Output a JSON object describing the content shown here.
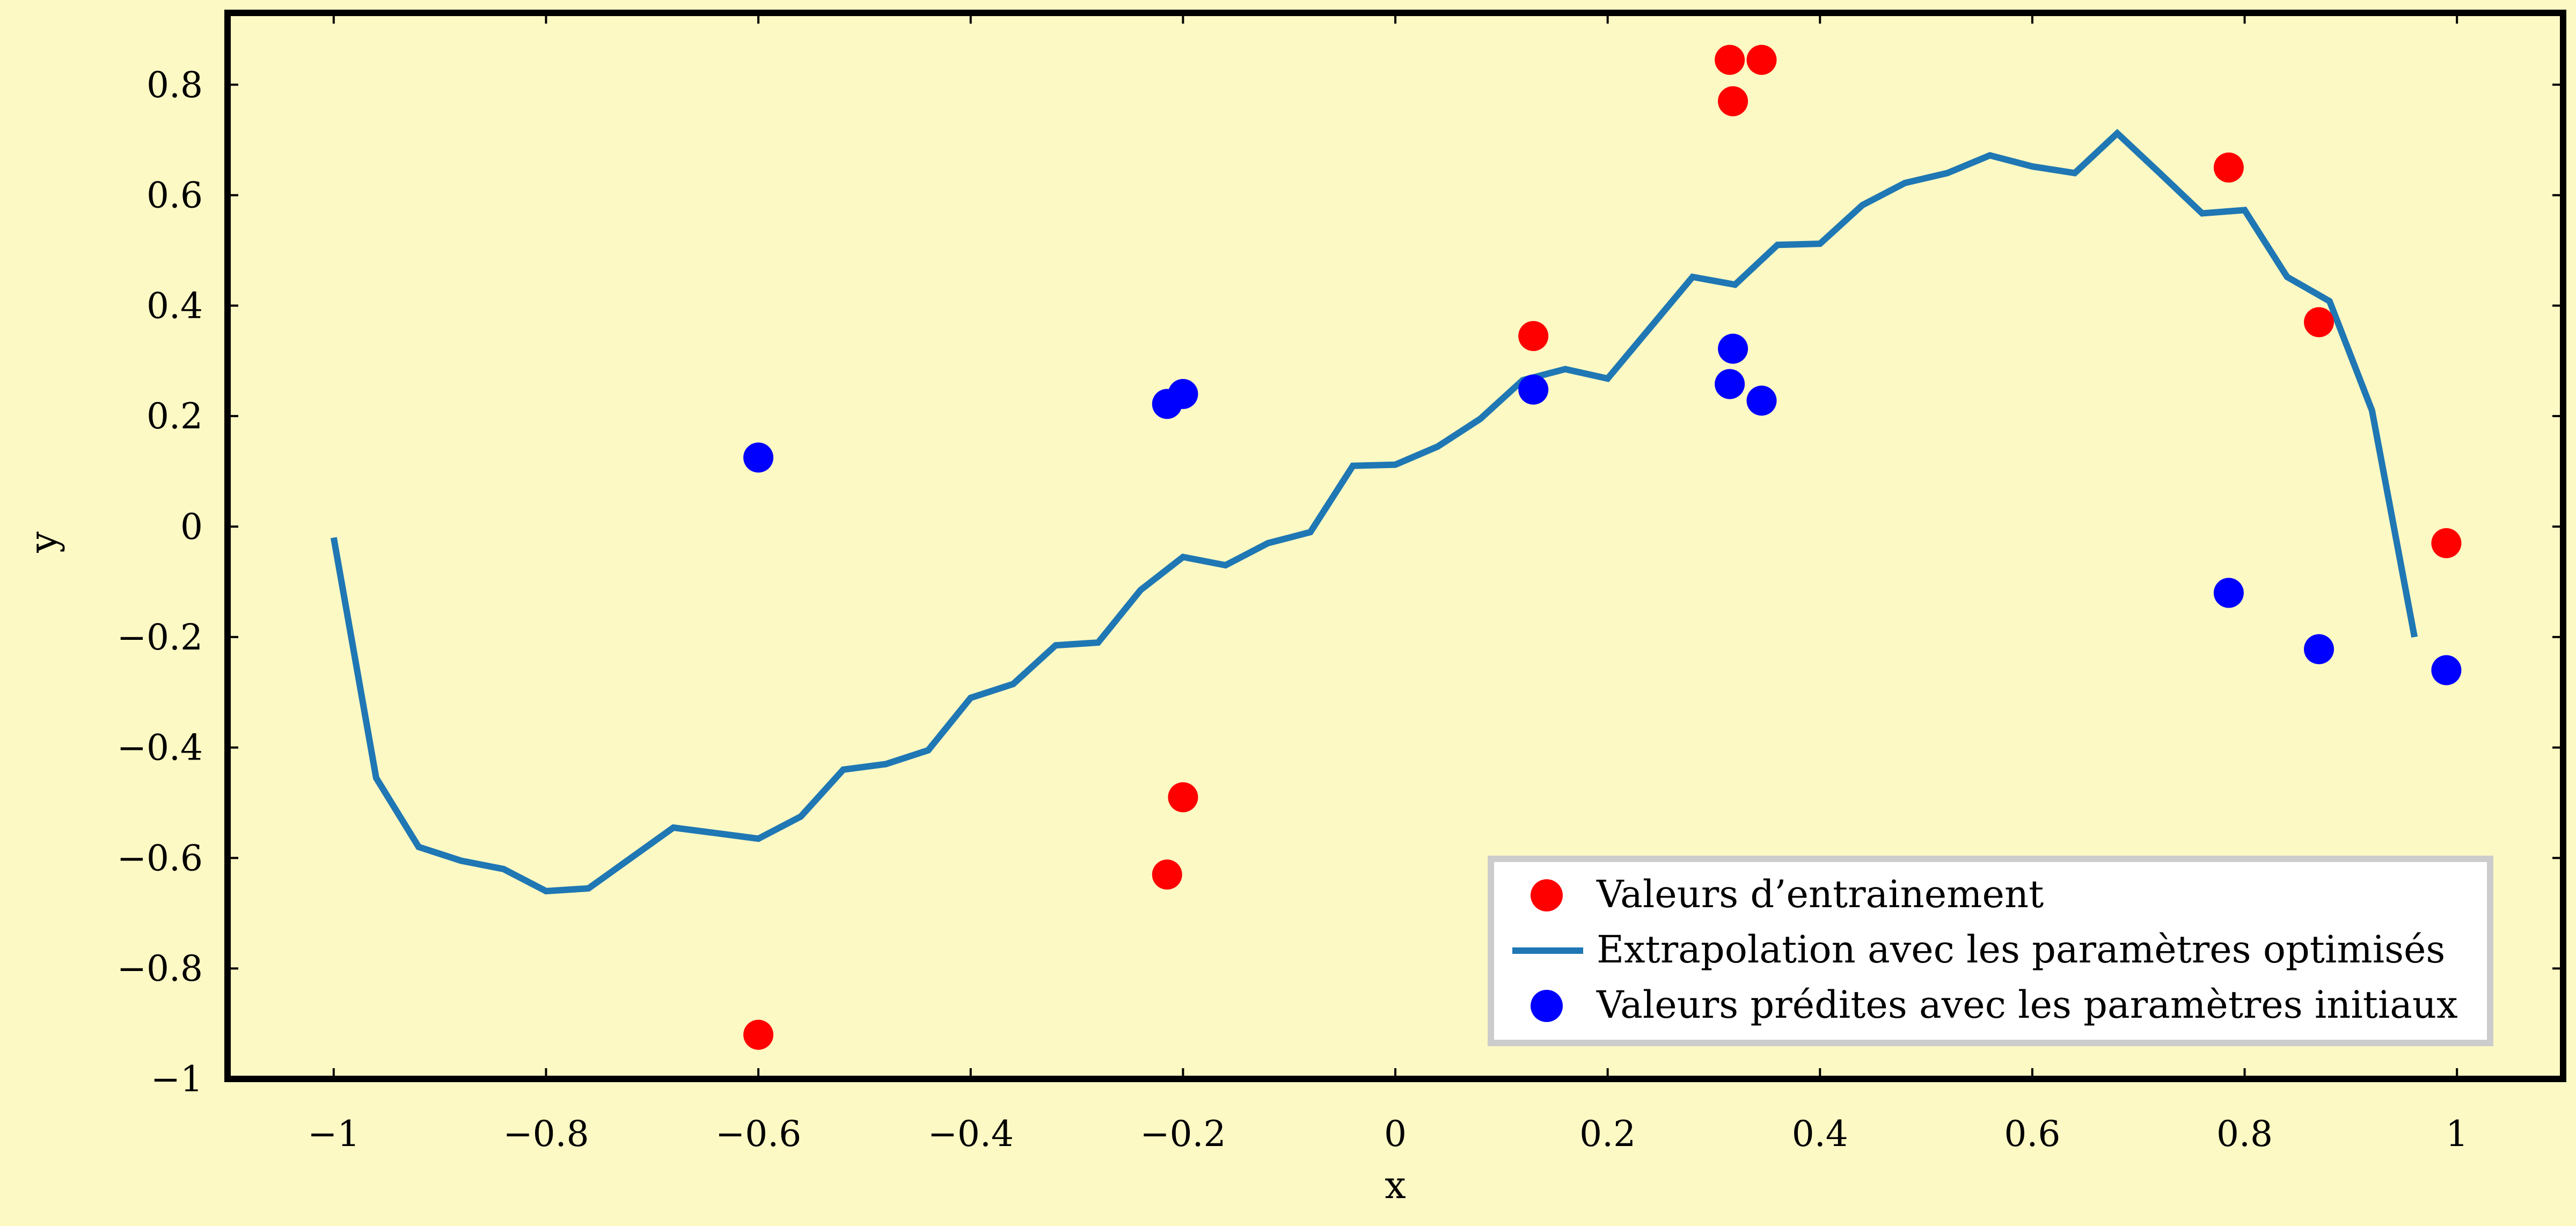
{
  "chart_data": {
    "type": "line",
    "title": "",
    "xlabel": "x",
    "ylabel": "y",
    "xlim": [
      -1.1,
      1.1
    ],
    "ylim": [
      -1.0,
      0.93
    ],
    "grid": false,
    "legend_position": "bottom-right",
    "x_ticks": [
      -1,
      -0.8,
      -0.6,
      -0.4,
      -0.2,
      0,
      0.2,
      0.4,
      0.6,
      0.8,
      1
    ],
    "x_tick_labels": [
      "−1",
      "−0.8",
      "−0.6",
      "−0.4",
      "−0.2",
      "0",
      "0.2",
      "0.4",
      "0.6",
      "0.8",
      "1"
    ],
    "y_ticks": [
      -1,
      -0.8,
      -0.6,
      -0.4,
      -0.2,
      0,
      0.2,
      0.4,
      0.6,
      0.8
    ],
    "y_tick_labels": [
      "−1",
      "−0.8",
      "−0.6",
      "−0.4",
      "−0.2",
      "0",
      "0.2",
      "0.4",
      "0.6",
      "0.8"
    ],
    "colors": {
      "background": "#fdf9c4",
      "training": "#ff0000",
      "line": "#1f77b4",
      "initial": "#0000ff"
    },
    "series": [
      {
        "name": "Valeurs d’entrainement",
        "kind": "scatter",
        "color": "#ff0000",
        "points": [
          [
            -0.6,
            -0.92
          ],
          [
            -0.215,
            -0.63
          ],
          [
            -0.2,
            -0.49
          ],
          [
            0.13,
            0.345
          ],
          [
            0.315,
            0.845
          ],
          [
            0.345,
            0.845
          ],
          [
            0.318,
            0.77
          ],
          [
            0.785,
            0.65
          ],
          [
            0.87,
            0.37
          ],
          [
            0.99,
            -0.03
          ]
        ]
      },
      {
        "name": "Extrapolation avec les paramètres optimisés",
        "kind": "line",
        "color": "#1f77b4",
        "points": [
          [
            -1.0,
            -0.02
          ],
          [
            -0.96,
            -0.455
          ],
          [
            -0.92,
            -0.58
          ],
          [
            -0.88,
            -0.605
          ],
          [
            -0.84,
            -0.62
          ],
          [
            -0.8,
            -0.66
          ],
          [
            -0.76,
            -0.655
          ],
          [
            -0.72,
            -0.6
          ],
          [
            -0.68,
            -0.545
          ],
          [
            -0.64,
            -0.555
          ],
          [
            -0.6,
            -0.565
          ],
          [
            -0.56,
            -0.525
          ],
          [
            -0.52,
            -0.44
          ],
          [
            -0.48,
            -0.43
          ],
          [
            -0.44,
            -0.405
          ],
          [
            -0.4,
            -0.31
          ],
          [
            -0.36,
            -0.285
          ],
          [
            -0.32,
            -0.215
          ],
          [
            -0.28,
            -0.21
          ],
          [
            -0.24,
            -0.115
          ],
          [
            -0.2,
            -0.055
          ],
          [
            -0.16,
            -0.07
          ],
          [
            -0.12,
            -0.03
          ],
          [
            -0.08,
            -0.01
          ],
          [
            -0.04,
            0.11
          ],
          [
            0.0,
            0.112
          ],
          [
            0.04,
            0.145
          ],
          [
            0.08,
            0.195
          ],
          [
            0.12,
            0.265
          ],
          [
            0.16,
            0.285
          ],
          [
            0.2,
            0.268
          ],
          [
            0.24,
            0.36
          ],
          [
            0.28,
            0.452
          ],
          [
            0.32,
            0.438
          ],
          [
            0.36,
            0.51
          ],
          [
            0.4,
            0.512
          ],
          [
            0.44,
            0.582
          ],
          [
            0.48,
            0.622
          ],
          [
            0.52,
            0.64
          ],
          [
            0.56,
            0.672
          ],
          [
            0.6,
            0.652
          ],
          [
            0.64,
            0.64
          ],
          [
            0.68,
            0.712
          ],
          [
            0.72,
            0.64
          ],
          [
            0.76,
            0.567
          ],
          [
            0.8,
            0.573
          ],
          [
            0.84,
            0.452
          ],
          [
            0.88,
            0.408
          ],
          [
            0.92,
            0.21
          ],
          [
            0.96,
            -0.2
          ]
        ]
      },
      {
        "name": "Valeurs prédites avec les paramètres initiaux",
        "kind": "scatter",
        "color": "#0000ff",
        "points": [
          [
            -0.6,
            0.125
          ],
          [
            -0.215,
            0.222
          ],
          [
            -0.2,
            0.24
          ],
          [
            0.13,
            0.248
          ],
          [
            0.315,
            0.258
          ],
          [
            0.318,
            0.322
          ],
          [
            0.345,
            0.228
          ],
          [
            0.785,
            -0.12
          ],
          [
            0.87,
            -0.222
          ],
          [
            0.99,
            -0.26
          ]
        ]
      }
    ]
  }
}
